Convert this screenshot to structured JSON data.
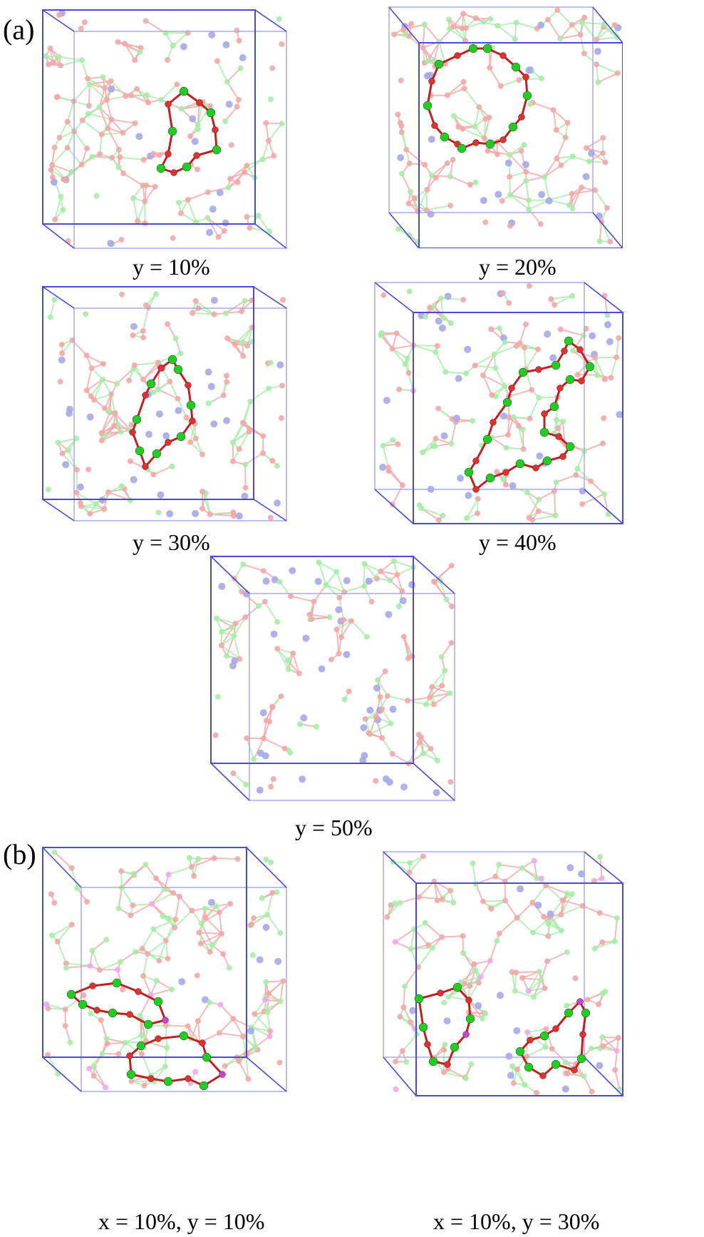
{
  "labels": {
    "panel_a": "(a)",
    "panel_b": "(b)"
  },
  "panels": [
    {
      "id": "y10",
      "caption": "y = 10%"
    },
    {
      "id": "y20",
      "caption": "y = 20%"
    },
    {
      "id": "y30",
      "caption": "y = 30%"
    },
    {
      "id": "y40",
      "caption": "y = 40%"
    },
    {
      "id": "y50",
      "caption": "y = 50%"
    },
    {
      "id": "x10y10",
      "caption": "x = 10%, y = 10%"
    },
    {
      "id": "x10y30",
      "caption": "x = 10%, y = 30%"
    }
  ],
  "colors": {
    "box_edge": "#4a4ad8",
    "box_edge_light": "#a8a8ec",
    "atom_red_faint": "#f2a8a8",
    "atom_green_faint": "#a8eca8",
    "atom_blue_faint": "#a9a9e8",
    "atom_magenta_faint": "#f0a8f0",
    "ring_bond": "#c02020",
    "ring_atom_green": "#22cc22",
    "ring_atom_red": "#e03030",
    "ring_atom_magenta": "#d040d0"
  }
}
